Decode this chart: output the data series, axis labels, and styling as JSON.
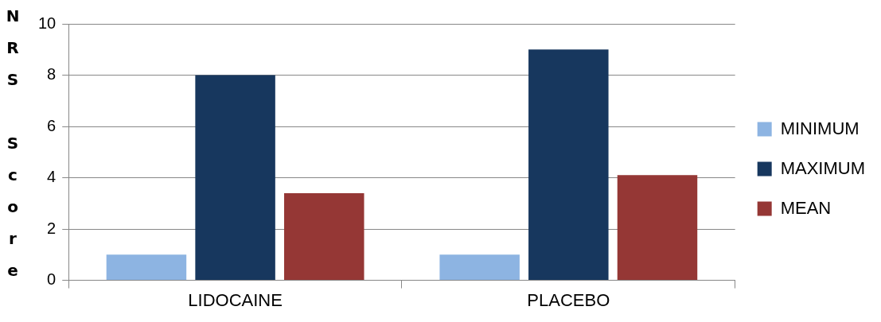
{
  "chart_data": {
    "type": "bar",
    "ylabel": "NRS Score",
    "categories": [
      "LIDOCAINE",
      "PLACEBO"
    ],
    "series": [
      {
        "name": "MINIMUM",
        "color": "#8db4e2",
        "values": [
          1,
          1
        ]
      },
      {
        "name": "MAXIMUM",
        "color": "#17375e",
        "values": [
          8,
          9
        ]
      },
      {
        "name": "MEAN",
        "color": "#953735",
        "values": [
          3.4,
          4.1
        ]
      }
    ],
    "ylim": [
      0,
      10
    ],
    "yticks": [
      0,
      2,
      4,
      6,
      8,
      10
    ],
    "grid": "y",
    "legend": "right"
  }
}
